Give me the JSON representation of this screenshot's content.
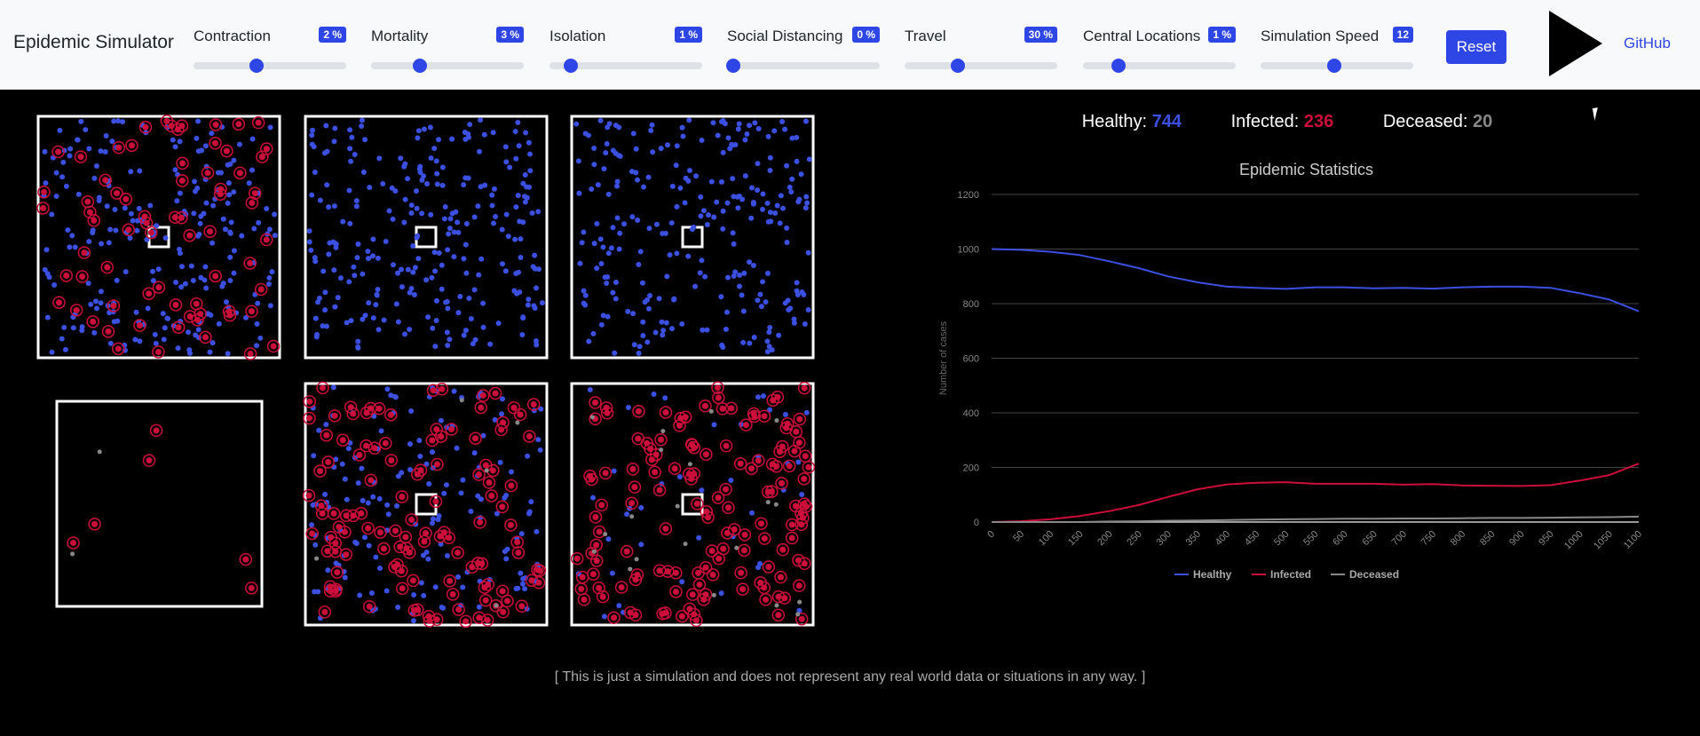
{
  "header": {
    "title": "Epidemic Simulator",
    "reset_label": "Reset",
    "github_label": "GitHub",
    "play_icon": "play-icon"
  },
  "sliders": [
    {
      "name": "contraction",
      "label": "Contraction",
      "badge": "2 %",
      "fraction": 0.41
    },
    {
      "name": "mortality",
      "label": "Mortality",
      "badge": "3 %",
      "fraction": 0.32
    },
    {
      "name": "isolation",
      "label": "Isolation",
      "badge": "1 %",
      "fraction": 0.14
    },
    {
      "name": "social-distancing",
      "label": "Social Distancing",
      "badge": "0 %",
      "fraction": 0.04
    },
    {
      "name": "travel",
      "label": "Travel",
      "badge": "30 %",
      "fraction": 0.35
    },
    {
      "name": "central-locations",
      "label": "Central Locations",
      "badge": "1 %",
      "fraction": 0.23
    },
    {
      "name": "simulation-speed",
      "label": "Simulation Speed",
      "badge": "12",
      "fraction": 0.48
    }
  ],
  "stats": {
    "healthy_label": "Healthy:",
    "healthy_value": "744",
    "infected_label": "Infected:",
    "infected_value": "236",
    "deceased_label": "Deceased:",
    "deceased_value": "20"
  },
  "colors": {
    "healthy": "#3b4fe0",
    "infected": "#cc0e3a",
    "deceased": "#888888",
    "accent": "#2f46e6"
  },
  "chart_data": {
    "type": "line",
    "title": "Epidemic Statistics",
    "ylabel": "Number of cases",
    "xlabel": "",
    "ylim": [
      0,
      1200
    ],
    "yticks": [
      0,
      200,
      400,
      600,
      800,
      1000,
      1200
    ],
    "x": [
      0,
      50,
      100,
      150,
      200,
      250,
      300,
      350,
      400,
      450,
      500,
      550,
      600,
      650,
      700,
      750,
      800,
      850,
      900,
      950,
      1000,
      1050,
      1100
    ],
    "legend_position": "bottom",
    "series": [
      {
        "name": "Healthy",
        "color": "#3b4fe0",
        "values": [
          1000,
          997,
          990,
          978,
          955,
          930,
          900,
          878,
          862,
          858,
          854,
          860,
          860,
          856,
          858,
          855,
          860,
          862,
          862,
          858,
          838,
          815,
          772
        ]
      },
      {
        "name": "Infected",
        "color": "#cc0e3a",
        "values": [
          0,
          3,
          10,
          22,
          40,
          62,
          92,
          120,
          138,
          144,
          146,
          140,
          140,
          140,
          137,
          139,
          134,
          133,
          132,
          135,
          152,
          172,
          214
        ]
      },
      {
        "name": "Deceased",
        "color": "#888888",
        "values": [
          0,
          0,
          0,
          0,
          2,
          3,
          5,
          6,
          7,
          9,
          10,
          11,
          12,
          12,
          13,
          13,
          14,
          15,
          15,
          16,
          17,
          18,
          20
        ]
      }
    ]
  },
  "disclaimer": "[ This is just a simulation and does not represent any real world data or situations in any way. ]"
}
